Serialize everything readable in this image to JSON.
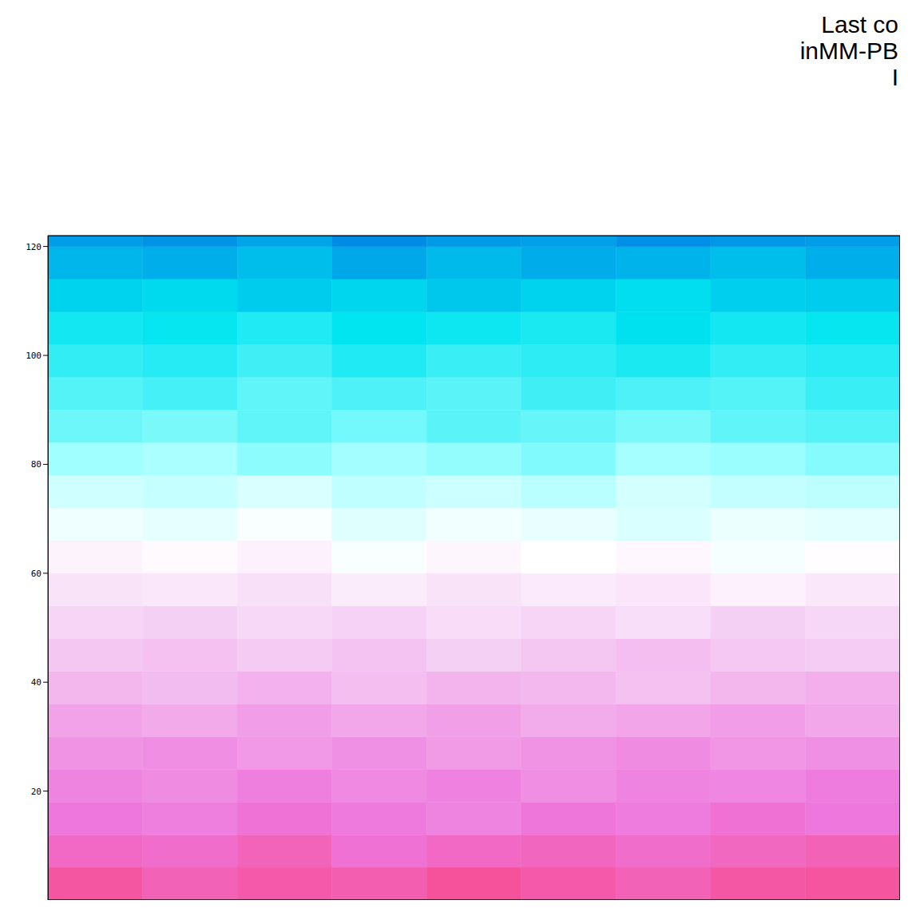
{
  "chart_data": {
    "type": "heatmap",
    "title": [
      "Last co",
      "inMM-PB",
      "I"
    ],
    "tick_labels": "y",
    "xlim": [
      0,
      135
    ],
    "ylim": [
      0,
      122
    ],
    "yticks": [
      20,
      40,
      60,
      80,
      100,
      120
    ],
    "x_bins": [
      0,
      15,
      30,
      45,
      60,
      75,
      90,
      105,
      120,
      135
    ],
    "y_bins": [
      0,
      6,
      12,
      18,
      24,
      30,
      36,
      42,
      48,
      54,
      60,
      66,
      72,
      78,
      84,
      90,
      96,
      102,
      108,
      114,
      120,
      122
    ],
    "zlim": [
      -1,
      1
    ],
    "colorscale": [
      [
        -1,
        "#ff2040"
      ],
      [
        -0.55,
        "#ee77dd"
      ],
      [
        -0.2,
        "#f5d0f5"
      ],
      [
        0,
        "#ffffff"
      ],
      [
        0.3,
        "#a0ffff"
      ],
      [
        0.55,
        "#00e5f0"
      ],
      [
        1,
        "#0044dd"
      ]
    ],
    "z": [
      [
        -0.72,
        -0.66,
        -0.7,
        -0.68,
        -0.74,
        -0.7,
        -0.66,
        -0.71,
        -0.73
      ],
      [
        -0.62,
        -0.6,
        -0.65,
        -0.58,
        -0.62,
        -0.64,
        -0.6,
        -0.63,
        -0.66
      ],
      [
        -0.55,
        -0.52,
        -0.57,
        -0.54,
        -0.5,
        -0.56,
        -0.53,
        -0.58,
        -0.55
      ],
      [
        -0.5,
        -0.47,
        -0.52,
        -0.48,
        -0.51,
        -0.46,
        -0.5,
        -0.49,
        -0.53
      ],
      [
        -0.44,
        -0.46,
        -0.42,
        -0.45,
        -0.41,
        -0.44,
        -0.47,
        -0.43,
        -0.45
      ],
      [
        -0.38,
        -0.35,
        -0.4,
        -0.36,
        -0.39,
        -0.34,
        -0.37,
        -0.4,
        -0.36
      ],
      [
        -0.3,
        -0.28,
        -0.32,
        -0.27,
        -0.31,
        -0.29,
        -0.26,
        -0.3,
        -0.33
      ],
      [
        -0.24,
        -0.26,
        -0.22,
        -0.25,
        -0.2,
        -0.24,
        -0.27,
        -0.23,
        -0.21
      ],
      [
        -0.18,
        -0.2,
        -0.16,
        -0.19,
        -0.15,
        -0.18,
        -0.14,
        -0.2,
        -0.17
      ],
      [
        -0.12,
        -0.1,
        -0.13,
        -0.08,
        -0.12,
        -0.09,
        -0.11,
        -0.06,
        -0.1
      ],
      [
        -0.05,
        -0.02,
        -0.06,
        0.02,
        -0.04,
        0.0,
        -0.03,
        0.03,
        -0.01
      ],
      [
        0.05,
        0.08,
        0.02,
        0.1,
        0.04,
        0.07,
        0.12,
        0.06,
        0.09
      ],
      [
        0.15,
        0.18,
        0.12,
        0.2,
        0.16,
        0.22,
        0.14,
        0.19,
        0.21
      ],
      [
        0.3,
        0.27,
        0.33,
        0.29,
        0.32,
        0.35,
        0.28,
        0.31,
        0.34
      ],
      [
        0.38,
        0.36,
        0.4,
        0.37,
        0.41,
        0.39,
        0.36,
        0.4,
        0.42
      ],
      [
        0.42,
        0.44,
        0.4,
        0.43,
        0.41,
        0.45,
        0.43,
        0.42,
        0.46
      ],
      [
        0.47,
        0.49,
        0.45,
        0.5,
        0.46,
        0.48,
        0.51,
        0.47,
        0.49
      ],
      [
        0.52,
        0.54,
        0.5,
        0.55,
        0.53,
        0.51,
        0.56,
        0.52,
        0.54
      ],
      [
        0.6,
        0.58,
        0.62,
        0.59,
        0.63,
        0.6,
        0.57,
        0.61,
        0.62
      ],
      [
        0.68,
        0.7,
        0.66,
        0.72,
        0.67,
        0.71,
        0.69,
        0.66,
        0.7
      ],
      [
        0.75,
        0.78,
        0.73,
        0.8,
        0.76,
        0.74,
        0.79,
        0.77,
        0.75
      ]
    ]
  }
}
